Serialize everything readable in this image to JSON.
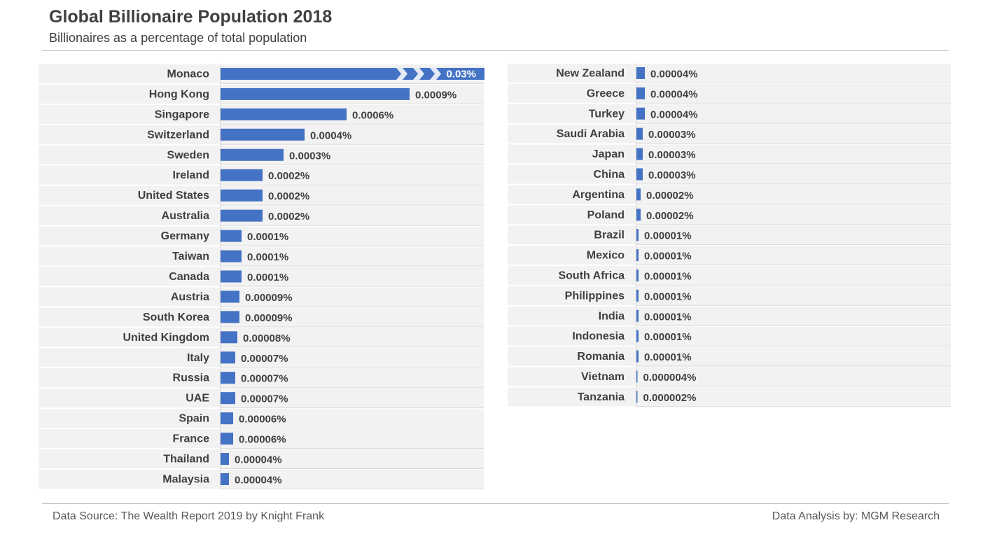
{
  "header": {
    "title": "Global Billionaire Population 2018",
    "subtitle": "Billionaires as a percentage of total population"
  },
  "footer": {
    "source": "Data Source: The Wealth Report 2019 by Knight Frank",
    "analysis": "Data Analysis by: MGM Research"
  },
  "colors": {
    "bar": "#4472c4",
    "band": "#f2f2f2",
    "grid": "#d9d9d9"
  },
  "chart_data": [
    {
      "type": "bar",
      "orientation": "horizontal",
      "title": "Global Billionaire Population 2018",
      "subtitle": "Billionaires as a percentage of total population",
      "unit": "% of total population",
      "axis_break": {
        "category": "Monaco",
        "note": "bar truncated with break chevrons"
      },
      "xlim": [
        0,
        0.0014
      ],
      "categories": [
        "Monaco",
        "Hong Kong",
        "Singapore",
        "Switzerland",
        "Sweden",
        "Ireland",
        "United States",
        "Australia",
        "Germany",
        "Taiwan",
        "Canada",
        "Austria",
        "South Korea",
        "United Kingdom",
        "Italy",
        "Russia",
        "UAE",
        "Spain",
        "France",
        "Thailand",
        "Malaysia"
      ],
      "values": [
        0.03,
        0.0009,
        0.0006,
        0.0004,
        0.0003,
        0.0002,
        0.0002,
        0.0002,
        0.0001,
        0.0001,
        0.0001,
        9e-05,
        9e-05,
        8e-05,
        7e-05,
        7e-05,
        7e-05,
        6e-05,
        6e-05,
        4e-05,
        4e-05
      ],
      "labels": [
        "0.03%",
        "0.0009%",
        "0.0006%",
        "0.0004%",
        "0.0003%",
        "0.0002%",
        "0.0002%",
        "0.0002%",
        "0.0001%",
        "0.0001%",
        "0.0001%",
        "0.00009%",
        "0.00009%",
        "0.00008%",
        "0.00007%",
        "0.00007%",
        "0.00007%",
        "0.00006%",
        "0.00006%",
        "0.00004%",
        "0.00004%"
      ]
    },
    {
      "type": "bar",
      "orientation": "horizontal",
      "unit": "% of total population",
      "xlim": [
        0,
        0.0014
      ],
      "categories": [
        "New Zealand",
        "Greece",
        "Turkey",
        "Saudi Arabia",
        "Japan",
        "China",
        "Argentina",
        "Poland",
        "Brazil",
        "Mexico",
        "South Africa",
        "Philippines",
        "India",
        "Indonesia",
        "Romania",
        "Vietnam",
        "Tanzania"
      ],
      "values": [
        4e-05,
        4e-05,
        4e-05,
        3e-05,
        3e-05,
        3e-05,
        2e-05,
        2e-05,
        1e-05,
        1e-05,
        1e-05,
        1e-05,
        1e-05,
        1e-05,
        1e-05,
        4e-06,
        2e-06
      ],
      "labels": [
        "0.00004%",
        "0.00004%",
        "0.00004%",
        "0.00003%",
        "0.00003%",
        "0.00003%",
        "0.00002%",
        "0.00002%",
        "0.00001%",
        "0.00001%",
        "0.00001%",
        "0.00001%",
        "0.00001%",
        "0.00001%",
        "0.00001%",
        "0.000004%",
        "0.000002%"
      ]
    }
  ]
}
